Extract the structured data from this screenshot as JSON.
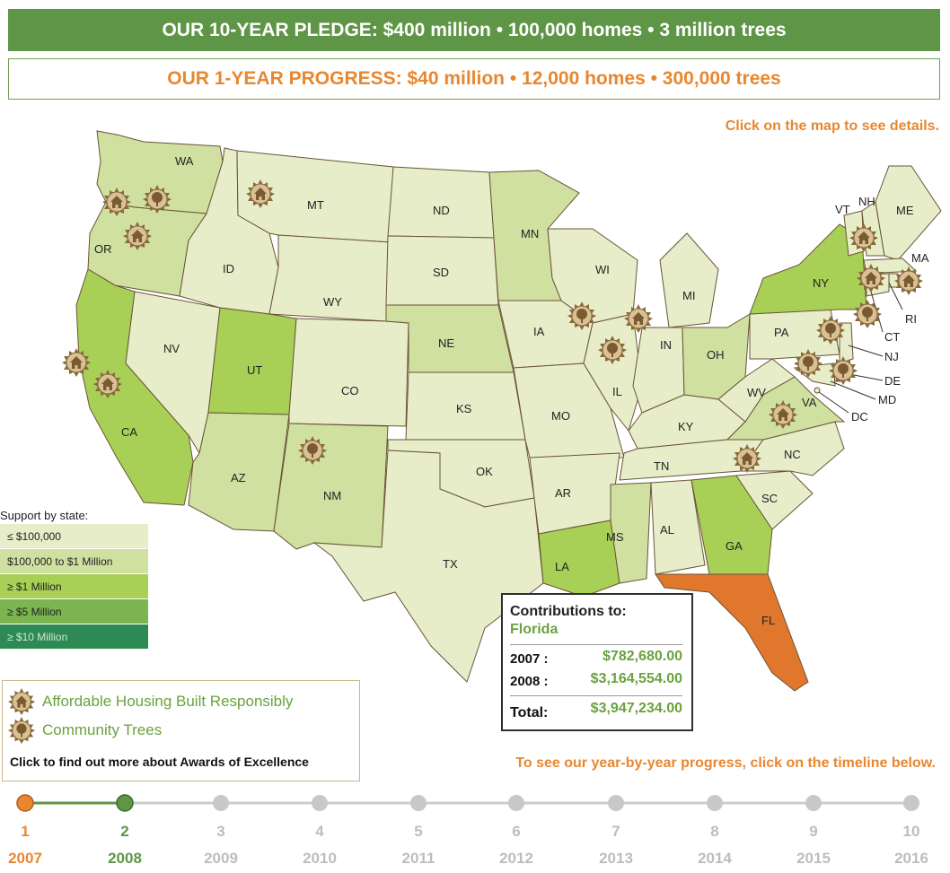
{
  "header": {
    "pledge": "OUR 10-YEAR PLEDGE: $400 million • 100,000 homes • 3 million trees",
    "progress": "OUR 1-YEAR PROGRESS: $40 million • 12,000 homes • 300,000 trees"
  },
  "hints": {
    "map": "Click on the map to see details.",
    "timeline": "To see our year-by-year progress, click on the timeline below."
  },
  "colors": {
    "tier1": "#e6edc8",
    "tier2": "#cfe0a0",
    "tier3": "#a8cf56",
    "tier4": "#7cb550",
    "tier5": "#2e8a55",
    "selected": "#e0772d",
    "orange": "#e8872f",
    "green": "#5f9546"
  },
  "states": {
    "WA": "WA",
    "OR": "OR",
    "CA": "CA",
    "NV": "NV",
    "ID": "ID",
    "MT": "MT",
    "WY": "WY",
    "UT": "UT",
    "AZ": "AZ",
    "CO": "CO",
    "NM": "NM",
    "ND": "ND",
    "SD": "SD",
    "NE": "NE",
    "KS": "KS",
    "OK": "OK",
    "TX": "TX",
    "MN": "MN",
    "IA": "IA",
    "MO": "MO",
    "AR": "AR",
    "LA": "LA",
    "WI": "WI",
    "IL": "IL",
    "MI": "MI",
    "IN": "IN",
    "OH": "OH",
    "KY": "KY",
    "TN": "TN",
    "MS": "MS",
    "AL": "AL",
    "GA": "GA",
    "FL": "FL",
    "SC": "SC",
    "NC": "NC",
    "VA": "VA",
    "WV": "WV",
    "PA": "PA",
    "NY": "NY",
    "VT": "VT",
    "NH": "NH",
    "ME": "ME",
    "MA": "MA",
    "RI": "RI",
    "CT": "CT",
    "NJ": "NJ",
    "DE": "DE",
    "MD": "MD",
    "DC": "DC"
  },
  "legend": {
    "title": "Support by state:",
    "tiers": [
      "≤ $100,000",
      "$100,000 to $1 Million",
      "≥ $1 Million",
      "≥ $5 Million",
      "≥ $10 Million"
    ]
  },
  "awards": {
    "housing": "Affordable Housing Built Responsibly",
    "trees": "Community Trees",
    "link": "Click to find out more about Awards of Excellence",
    "housing_icon": "house-badge-icon",
    "tree_icon": "tree-badge-icon"
  },
  "contributions": {
    "title": "Contributions to:",
    "state": "Florida",
    "rows": [
      {
        "label": "2007 :",
        "value": "$782,680.00"
      },
      {
        "label": "2008 :",
        "value": "$3,164,554.00"
      }
    ],
    "total_label": "Total:",
    "total_value": "$3,947,234.00"
  },
  "timeline": {
    "points": [
      {
        "num": "1",
        "year": "2007",
        "status": "current"
      },
      {
        "num": "2",
        "year": "2008",
        "status": "completed"
      },
      {
        "num": "3",
        "year": "2009",
        "status": "future"
      },
      {
        "num": "4",
        "year": "2010",
        "status": "future"
      },
      {
        "num": "5",
        "year": "2011",
        "status": "future"
      },
      {
        "num": "6",
        "year": "2012",
        "status": "future"
      },
      {
        "num": "7",
        "year": "2013",
        "status": "future"
      },
      {
        "num": "8",
        "year": "2014",
        "status": "future"
      },
      {
        "num": "9",
        "year": "2015",
        "status": "future"
      },
      {
        "num": "10",
        "year": "2016",
        "status": "future"
      }
    ]
  }
}
